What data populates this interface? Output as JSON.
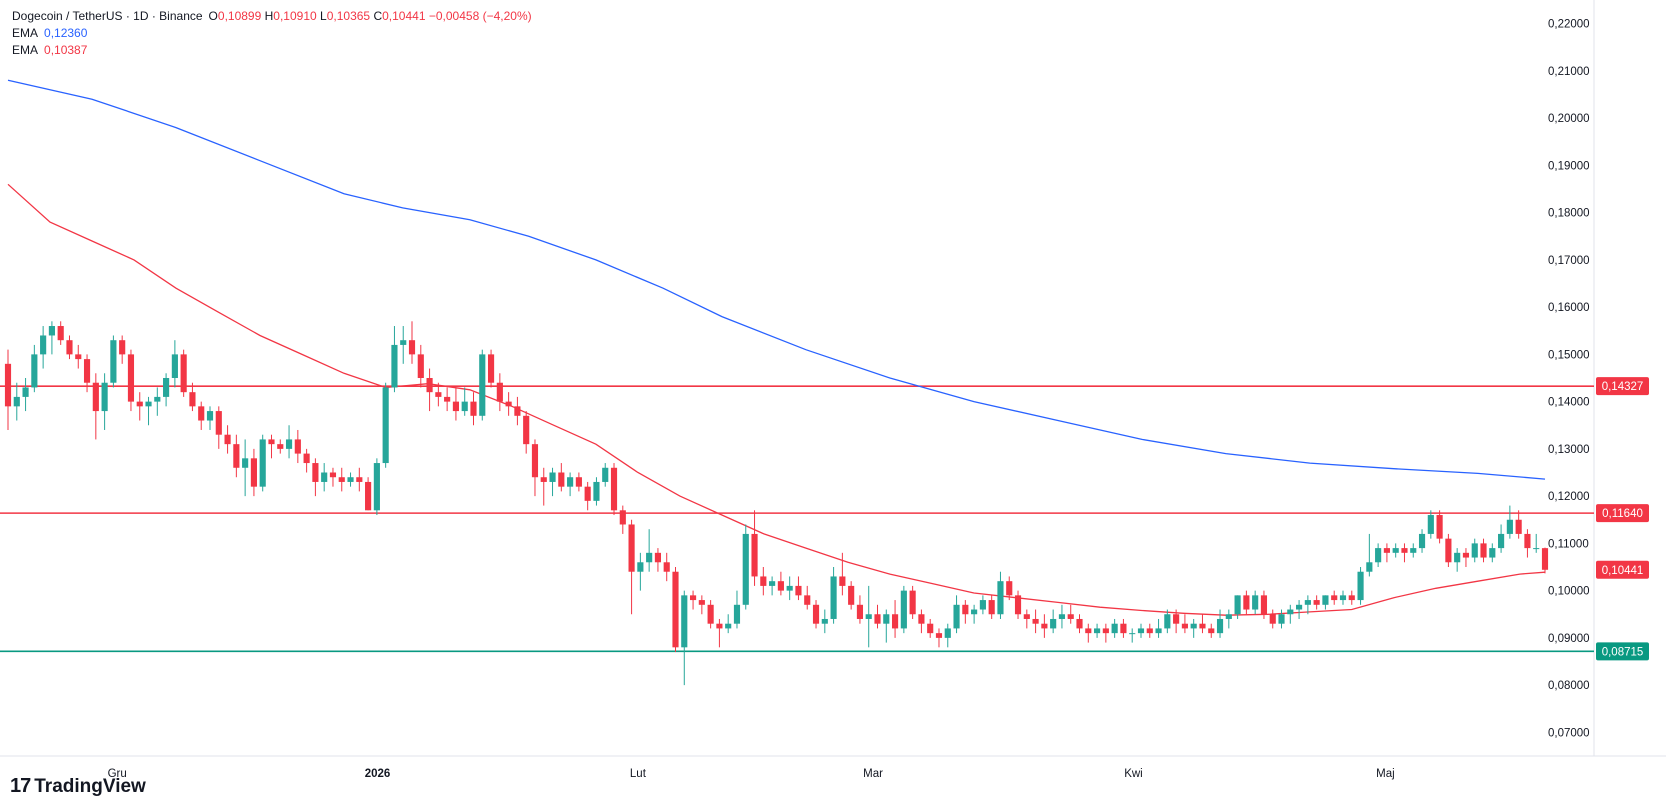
{
  "legend": {
    "title": "Dogecoin / TetherUS · 1D · Binance",
    "o_label": "O",
    "o_value": "0,10899",
    "h_label": "H",
    "h_value": "0,10910",
    "l_label": "L",
    "l_value": "0,10365",
    "c_label": "C",
    "c_value": "0,10441",
    "change": "−0,00458 (−4,20%)",
    "ema1_label": "EMA",
    "ema1_value": "0,12360",
    "ema2_label": "EMA",
    "ema2_value": "0,10387"
  },
  "branding": {
    "logo_text": "TradingView",
    "logo_mark": "17"
  },
  "colors": {
    "up": "#26a69a",
    "down": "#f23645",
    "ema_long": "#2962ff",
    "ema_short": "#f23645",
    "support": "#089981",
    "resistance": "#f23645"
  },
  "chart_data": {
    "type": "candlestick",
    "ylim": [
      0.065,
      0.225
    ],
    "y_ticks": [
      "0,22000",
      "0,21000",
      "0,20000",
      "0,19000",
      "0,18000",
      "0,17000",
      "0,16000",
      "0,15000",
      "0,14000",
      "0,13000",
      "0,12000",
      "0,11000",
      "0,10000",
      "0,09000",
      "0,08000",
      "0,07000"
    ],
    "y_tick_values": [
      0.22,
      0.21,
      0.2,
      0.19,
      0.18,
      0.17,
      0.16,
      0.15,
      0.14,
      0.13,
      0.12,
      0.11,
      0.1,
      0.09,
      0.08,
      0.07
    ],
    "x_ticks": [
      {
        "label": "Gru",
        "day": 13,
        "bold": false
      },
      {
        "label": "2026",
        "day": 44,
        "bold": true
      },
      {
        "label": "Lut",
        "day": 75,
        "bold": false
      },
      {
        "label": "Mar",
        "day": 103,
        "bold": false
      },
      {
        "label": "Kwi",
        "day": 134,
        "bold": false
      },
      {
        "label": "Maj",
        "day": 164,
        "bold": false
      }
    ],
    "horizontal_levels": [
      {
        "value": 0.14327,
        "label": "0,14327",
        "color": "#f23645"
      },
      {
        "value": 0.1164,
        "label": "0,11640",
        "color": "#f23645"
      },
      {
        "value": 0.08715,
        "label": "0,08715",
        "color": "#089981"
      }
    ],
    "last_price": {
      "value": 0.10441,
      "label": "0,10441",
      "color": "#f23645"
    },
    "ema_long": [
      [
        0,
        0.208
      ],
      [
        10,
        0.204
      ],
      [
        20,
        0.198
      ],
      [
        30,
        0.191
      ],
      [
        40,
        0.184
      ],
      [
        47,
        0.181
      ],
      [
        55,
        0.1785
      ],
      [
        62,
        0.175
      ],
      [
        70,
        0.17
      ],
      [
        78,
        0.164
      ],
      [
        85,
        0.158
      ],
      [
        95,
        0.151
      ],
      [
        105,
        0.145
      ],
      [
        115,
        0.14
      ],
      [
        125,
        0.136
      ],
      [
        135,
        0.132
      ],
      [
        145,
        0.129
      ],
      [
        155,
        0.127
      ],
      [
        165,
        0.1258
      ],
      [
        175,
        0.1248
      ],
      [
        183,
        0.1236
      ]
    ],
    "ema_short": [
      [
        0,
        0.186
      ],
      [
        5,
        0.178
      ],
      [
        10,
        0.174
      ],
      [
        15,
        0.17
      ],
      [
        20,
        0.164
      ],
      [
        25,
        0.159
      ],
      [
        30,
        0.154
      ],
      [
        35,
        0.15
      ],
      [
        40,
        0.146
      ],
      [
        45,
        0.143
      ],
      [
        50,
        0.1438
      ],
      [
        55,
        0.1425
      ],
      [
        60,
        0.139
      ],
      [
        65,
        0.135
      ],
      [
        70,
        0.131
      ],
      [
        75,
        0.125
      ],
      [
        80,
        0.12
      ],
      [
        85,
        0.116
      ],
      [
        90,
        0.112
      ],
      [
        95,
        0.109
      ],
      [
        100,
        0.106
      ],
      [
        105,
        0.1035
      ],
      [
        110,
        0.1015
      ],
      [
        115,
        0.0995
      ],
      [
        120,
        0.0985
      ],
      [
        125,
        0.0975
      ],
      [
        130,
        0.0965
      ],
      [
        135,
        0.0958
      ],
      [
        140,
        0.0952
      ],
      [
        145,
        0.0948
      ],
      [
        150,
        0.095
      ],
      [
        155,
        0.0955
      ],
      [
        160,
        0.096
      ],
      [
        165,
        0.0985
      ],
      [
        170,
        0.1005
      ],
      [
        175,
        0.102
      ],
      [
        180,
        0.1035
      ],
      [
        183,
        0.1039
      ]
    ],
    "candles": [
      [
        0.148,
        0.151,
        0.134,
        0.139
      ],
      [
        0.139,
        0.144,
        0.136,
        0.141
      ],
      [
        0.141,
        0.145,
        0.138,
        0.143
      ],
      [
        0.143,
        0.152,
        0.142,
        0.15
      ],
      [
        0.15,
        0.156,
        0.147,
        0.154
      ],
      [
        0.154,
        0.157,
        0.15,
        0.156
      ],
      [
        0.156,
        0.157,
        0.152,
        0.153
      ],
      [
        0.153,
        0.154,
        0.149,
        0.15
      ],
      [
        0.15,
        0.152,
        0.147,
        0.149
      ],
      [
        0.149,
        0.15,
        0.142,
        0.144
      ],
      [
        0.144,
        0.146,
        0.132,
        0.138
      ],
      [
        0.138,
        0.146,
        0.134,
        0.144
      ],
      [
        0.144,
        0.154,
        0.143,
        0.153
      ],
      [
        0.153,
        0.154,
        0.148,
        0.15
      ],
      [
        0.15,
        0.151,
        0.138,
        0.14
      ],
      [
        0.14,
        0.142,
        0.136,
        0.139
      ],
      [
        0.139,
        0.141,
        0.135,
        0.14
      ],
      [
        0.14,
        0.143,
        0.137,
        0.141
      ],
      [
        0.141,
        0.146,
        0.139,
        0.145
      ],
      [
        0.145,
        0.153,
        0.143,
        0.15
      ],
      [
        0.15,
        0.151,
        0.141,
        0.142
      ],
      [
        0.142,
        0.144,
        0.138,
        0.139
      ],
      [
        0.139,
        0.14,
        0.134,
        0.136
      ],
      [
        0.136,
        0.139,
        0.134,
        0.138
      ],
      [
        0.138,
        0.139,
        0.13,
        0.133
      ],
      [
        0.133,
        0.135,
        0.129,
        0.131
      ],
      [
        0.131,
        0.133,
        0.124,
        0.126
      ],
      [
        0.126,
        0.132,
        0.12,
        0.128
      ],
      [
        0.128,
        0.13,
        0.12,
        0.122
      ],
      [
        0.122,
        0.133,
        0.121,
        0.132
      ],
      [
        0.132,
        0.133,
        0.128,
        0.131
      ],
      [
        0.131,
        0.132,
        0.129,
        0.13
      ],
      [
        0.13,
        0.135,
        0.128,
        0.132
      ],
      [
        0.132,
        0.134,
        0.127,
        0.129
      ],
      [
        0.129,
        0.13,
        0.125,
        0.127
      ],
      [
        0.127,
        0.128,
        0.12,
        0.123
      ],
      [
        0.123,
        0.127,
        0.121,
        0.125
      ],
      [
        0.125,
        0.126,
        0.122,
        0.124
      ],
      [
        0.124,
        0.126,
        0.121,
        0.123
      ],
      [
        0.123,
        0.125,
        0.122,
        0.124
      ],
      [
        0.124,
        0.126,
        0.121,
        0.123
      ],
      [
        0.123,
        0.124,
        0.117,
        0.117
      ],
      [
        0.117,
        0.128,
        0.116,
        0.127
      ],
      [
        0.127,
        0.144,
        0.126,
        0.143
      ],
      [
        0.143,
        0.156,
        0.142,
        0.152
      ],
      [
        0.152,
        0.156,
        0.148,
        0.153
      ],
      [
        0.153,
        0.157,
        0.148,
        0.15
      ],
      [
        0.15,
        0.152,
        0.143,
        0.145
      ],
      [
        0.145,
        0.147,
        0.138,
        0.142
      ],
      [
        0.142,
        0.144,
        0.139,
        0.141
      ],
      [
        0.141,
        0.143,
        0.138,
        0.14
      ],
      [
        0.14,
        0.143,
        0.136,
        0.138
      ],
      [
        0.138,
        0.143,
        0.137,
        0.14
      ],
      [
        0.14,
        0.142,
        0.135,
        0.137
      ],
      [
        0.137,
        0.151,
        0.136,
        0.15
      ],
      [
        0.15,
        0.151,
        0.143,
        0.144
      ],
      [
        0.144,
        0.146,
        0.138,
        0.14
      ],
      [
        0.14,
        0.142,
        0.137,
        0.139
      ],
      [
        0.139,
        0.141,
        0.135,
        0.137
      ],
      [
        0.137,
        0.138,
        0.129,
        0.131
      ],
      [
        0.131,
        0.132,
        0.12,
        0.124
      ],
      [
        0.124,
        0.126,
        0.118,
        0.123
      ],
      [
        0.123,
        0.126,
        0.12,
        0.125
      ],
      [
        0.125,
        0.127,
        0.121,
        0.122
      ],
      [
        0.122,
        0.125,
        0.12,
        0.124
      ],
      [
        0.124,
        0.125,
        0.121,
        0.122
      ],
      [
        0.122,
        0.123,
        0.117,
        0.119
      ],
      [
        0.119,
        0.124,
        0.118,
        0.123
      ],
      [
        0.123,
        0.127,
        0.122,
        0.126
      ],
      [
        0.126,
        0.127,
        0.116,
        0.117
      ],
      [
        0.117,
        0.118,
        0.112,
        0.114
      ],
      [
        0.114,
        0.115,
        0.095,
        0.104
      ],
      [
        0.104,
        0.108,
        0.1,
        0.106
      ],
      [
        0.106,
        0.113,
        0.104,
        0.108
      ],
      [
        0.108,
        0.109,
        0.104,
        0.106
      ],
      [
        0.106,
        0.108,
        0.102,
        0.104
      ],
      [
        0.104,
        0.105,
        0.087,
        0.088
      ],
      [
        0.088,
        0.1,
        0.08,
        0.099
      ],
      [
        0.099,
        0.1,
        0.096,
        0.098
      ],
      [
        0.098,
        0.099,
        0.095,
        0.097
      ],
      [
        0.097,
        0.098,
        0.092,
        0.093
      ],
      [
        0.093,
        0.094,
        0.088,
        0.092
      ],
      [
        0.092,
        0.095,
        0.091,
        0.093
      ],
      [
        0.093,
        0.1,
        0.092,
        0.097
      ],
      [
        0.097,
        0.114,
        0.096,
        0.112
      ],
      [
        0.112,
        0.117,
        0.101,
        0.103
      ],
      [
        0.103,
        0.105,
        0.099,
        0.101
      ],
      [
        0.101,
        0.103,
        0.099,
        0.102
      ],
      [
        0.102,
        0.104,
        0.099,
        0.1
      ],
      [
        0.1,
        0.103,
        0.098,
        0.101
      ],
      [
        0.101,
        0.103,
        0.098,
        0.099
      ],
      [
        0.099,
        0.101,
        0.096,
        0.097
      ],
      [
        0.097,
        0.098,
        0.092,
        0.093
      ],
      [
        0.093,
        0.096,
        0.091,
        0.094
      ],
      [
        0.094,
        0.105,
        0.093,
        0.103
      ],
      [
        0.103,
        0.108,
        0.099,
        0.101
      ],
      [
        0.101,
        0.102,
        0.096,
        0.097
      ],
      [
        0.097,
        0.099,
        0.093,
        0.094
      ],
      [
        0.094,
        0.101,
        0.088,
        0.095
      ],
      [
        0.095,
        0.097,
        0.092,
        0.093
      ],
      [
        0.093,
        0.096,
        0.089,
        0.095
      ],
      [
        0.095,
        0.098,
        0.09,
        0.092
      ],
      [
        0.092,
        0.101,
        0.091,
        0.1
      ],
      [
        0.1,
        0.101,
        0.094,
        0.095
      ],
      [
        0.095,
        0.096,
        0.091,
        0.093
      ],
      [
        0.093,
        0.094,
        0.09,
        0.091
      ],
      [
        0.091,
        0.092,
        0.088,
        0.09
      ],
      [
        0.09,
        0.093,
        0.088,
        0.092
      ],
      [
        0.092,
        0.099,
        0.091,
        0.097
      ],
      [
        0.097,
        0.098,
        0.093,
        0.095
      ],
      [
        0.095,
        0.097,
        0.093,
        0.096
      ],
      [
        0.096,
        0.099,
        0.095,
        0.098
      ],
      [
        0.098,
        0.099,
        0.094,
        0.095
      ],
      [
        0.095,
        0.104,
        0.094,
        0.102
      ],
      [
        0.102,
        0.103,
        0.098,
        0.099
      ],
      [
        0.099,
        0.1,
        0.094,
        0.095
      ],
      [
        0.095,
        0.096,
        0.092,
        0.094
      ],
      [
        0.094,
        0.096,
        0.091,
        0.093
      ],
      [
        0.093,
        0.095,
        0.09,
        0.092
      ],
      [
        0.092,
        0.096,
        0.091,
        0.094
      ],
      [
        0.094,
        0.097,
        0.092,
        0.095
      ],
      [
        0.095,
        0.097,
        0.093,
        0.094
      ],
      [
        0.094,
        0.095,
        0.091,
        0.092
      ],
      [
        0.092,
        0.093,
        0.089,
        0.091
      ],
      [
        0.091,
        0.093,
        0.09,
        0.092
      ],
      [
        0.092,
        0.093,
        0.089,
        0.091
      ],
      [
        0.091,
        0.094,
        0.09,
        0.093
      ],
      [
        0.093,
        0.094,
        0.09,
        0.091
      ],
      [
        0.091,
        0.092,
        0.089,
        0.091
      ],
      [
        0.091,
        0.093,
        0.09,
        0.092
      ],
      [
        0.092,
        0.093,
        0.09,
        0.091
      ],
      [
        0.091,
        0.094,
        0.09,
        0.092
      ],
      [
        0.092,
        0.096,
        0.091,
        0.095
      ],
      [
        0.095,
        0.096,
        0.091,
        0.093
      ],
      [
        0.093,
        0.095,
        0.091,
        0.092
      ],
      [
        0.092,
        0.094,
        0.09,
        0.093
      ],
      [
        0.093,
        0.095,
        0.091,
        0.092
      ],
      [
        0.092,
        0.093,
        0.09,
        0.091
      ],
      [
        0.091,
        0.096,
        0.09,
        0.094
      ],
      [
        0.094,
        0.096,
        0.092,
        0.095
      ],
      [
        0.095,
        0.099,
        0.094,
        0.099
      ],
      [
        0.099,
        0.1,
        0.095,
        0.096
      ],
      [
        0.096,
        0.1,
        0.095,
        0.099
      ],
      [
        0.099,
        0.1,
        0.094,
        0.095
      ],
      [
        0.095,
        0.096,
        0.092,
        0.093
      ],
      [
        0.093,
        0.096,
        0.092,
        0.095
      ],
      [
        0.095,
        0.097,
        0.093,
        0.096
      ],
      [
        0.096,
        0.098,
        0.094,
        0.097
      ],
      [
        0.097,
        0.099,
        0.095,
        0.098
      ],
      [
        0.098,
        0.099,
        0.096,
        0.097
      ],
      [
        0.097,
        0.099,
        0.096,
        0.099
      ],
      [
        0.099,
        0.1,
        0.097,
        0.098
      ],
      [
        0.098,
        0.1,
        0.097,
        0.099
      ],
      [
        0.099,
        0.1,
        0.097,
        0.098
      ],
      [
        0.098,
        0.105,
        0.097,
        0.104
      ],
      [
        0.104,
        0.112,
        0.103,
        0.106
      ],
      [
        0.106,
        0.11,
        0.105,
        0.109
      ],
      [
        0.109,
        0.11,
        0.106,
        0.108
      ],
      [
        0.108,
        0.11,
        0.107,
        0.109
      ],
      [
        0.109,
        0.11,
        0.106,
        0.108
      ],
      [
        0.108,
        0.11,
        0.107,
        0.109
      ],
      [
        0.109,
        0.113,
        0.108,
        0.112
      ],
      [
        0.112,
        0.117,
        0.111,
        0.116
      ],
      [
        0.116,
        0.117,
        0.11,
        0.111
      ],
      [
        0.111,
        0.112,
        0.105,
        0.106
      ],
      [
        0.106,
        0.109,
        0.104,
        0.108
      ],
      [
        0.108,
        0.109,
        0.105,
        0.107
      ],
      [
        0.107,
        0.111,
        0.106,
        0.11
      ],
      [
        0.11,
        0.111,
        0.106,
        0.107
      ],
      [
        0.107,
        0.11,
        0.106,
        0.109
      ],
      [
        0.109,
        0.114,
        0.108,
        0.112
      ],
      [
        0.112,
        0.118,
        0.111,
        0.115
      ],
      [
        0.115,
        0.117,
        0.111,
        0.112
      ],
      [
        0.112,
        0.113,
        0.107,
        0.109
      ],
      [
        0.109,
        0.112,
        0.108,
        0.109
      ],
      [
        0.10899,
        0.1091,
        0.10365,
        0.10441
      ]
    ]
  }
}
